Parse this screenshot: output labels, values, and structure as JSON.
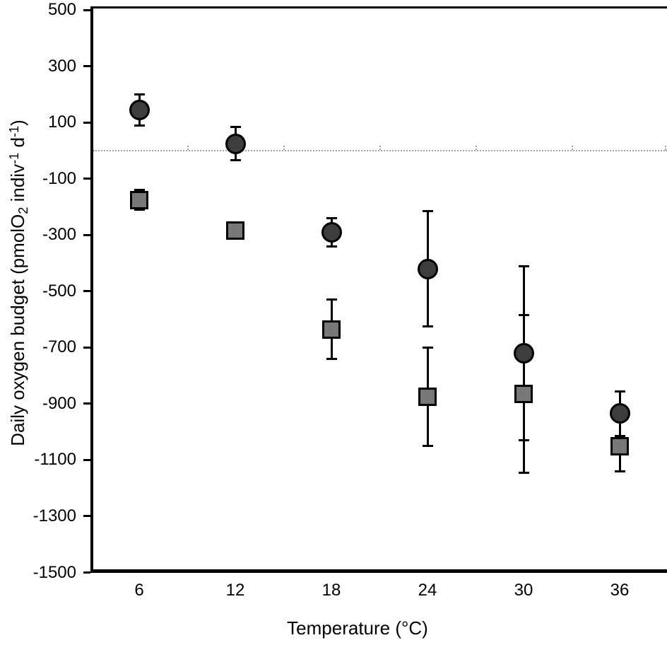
{
  "figure": {
    "xlabel": "Temperature (°C)",
    "ylabel_parts": {
      "pre": "Daily oxygen budget (pmolO",
      "sub": "2",
      "mid1": " indiv",
      "sup1": "-1",
      "mid2": " d",
      "sup2": "-1",
      "post": ")"
    }
  },
  "chart_data": {
    "type": "scatter",
    "title": "",
    "x_label": "Temperature (°C)",
    "y_label": "Daily oxygen budget (pmolO2 indiv-1 d-1)",
    "x": [
      6,
      12,
      18,
      24,
      30,
      36
    ],
    "xticks": [
      6,
      12,
      18,
      24,
      30,
      36
    ],
    "xlim": [
      3,
      39
    ],
    "ylim": [
      -1500,
      500
    ],
    "yticks": [
      500,
      300,
      100,
      -100,
      -300,
      -500,
      -700,
      -900,
      -1100,
      -1300,
      -1500
    ],
    "grid": false,
    "legend": false,
    "zero_reference_line": {
      "y": 0,
      "style": "dotted",
      "color": "#a0a0a0"
    },
    "series": [
      {
        "name": "dark-circles",
        "marker": "circle",
        "fill": "#3d3d3d",
        "stroke": "#000000",
        "values": [
          145,
          25,
          -290,
          -420,
          -720,
          -935
        ],
        "errors": [
          55,
          60,
          50,
          205,
          310,
          80
        ]
      },
      {
        "name": "gray-squares",
        "marker": "square",
        "fill": "#787878",
        "stroke": "#000000",
        "values": [
          -175,
          -285,
          -635,
          -875,
          -865,
          -1050
        ],
        "errors": [
          35,
          null,
          105,
          175,
          280,
          90
        ]
      }
    ]
  }
}
